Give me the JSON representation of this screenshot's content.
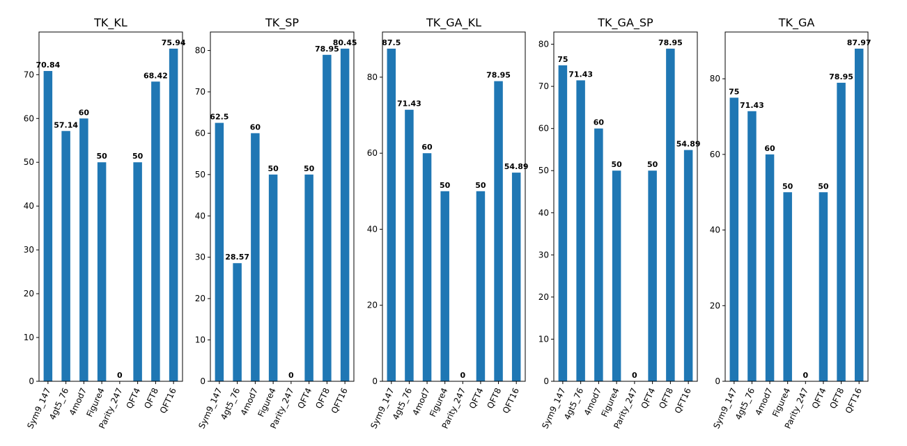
{
  "chart_data": [
    {
      "type": "bar",
      "title": "TK_KL",
      "categories": [
        "Sym9_147",
        "4gt5_76",
        "4mod7",
        "Figure4",
        "Parity_247",
        "QFT4",
        "QFT8",
        "QFT16"
      ],
      "values": [
        70.84,
        57.14,
        60,
        50,
        0,
        50,
        68.42,
        75.94
      ],
      "labels": [
        "70.84",
        "57.14",
        "60",
        "50",
        "0",
        "50",
        "68.42",
        "75.94"
      ],
      "yticks": [
        "0",
        "10",
        "20",
        "30",
        "40",
        "50",
        "60",
        "70"
      ],
      "ylim": [
        0,
        79.74
      ],
      "xlabel": "",
      "ylabel": "",
      "color": "#1f77b4",
      "grid": false
    },
    {
      "type": "bar",
      "title": "TK_SP",
      "categories": [
        "Sym9_147",
        "4gt5_76",
        "4mod7",
        "Figure4",
        "Parity_247",
        "QFT4",
        "QFT8",
        "QFT16"
      ],
      "values": [
        62.5,
        28.57,
        60,
        50,
        0,
        50,
        78.95,
        80.45
      ],
      "labels": [
        "62.5",
        "28.57",
        "60",
        "50",
        "0",
        "50",
        "78.95",
        "80.45"
      ],
      "yticks": [
        "0",
        "10",
        "20",
        "30",
        "40",
        "50",
        "60",
        "70",
        "80"
      ],
      "ylim": [
        0,
        84.47
      ],
      "xlabel": "",
      "ylabel": "",
      "color": "#1f77b4",
      "grid": false
    },
    {
      "type": "bar",
      "title": "TK_GA_KL",
      "categories": [
        "Sym9_147",
        "4gt5_76",
        "4mod7",
        "Figure4",
        "Parity_247",
        "QFT4",
        "QFT8",
        "QFT16"
      ],
      "values": [
        87.5,
        71.43,
        60,
        50,
        0,
        50,
        78.95,
        54.89
      ],
      "labels": [
        "87.5",
        "71.43",
        "60",
        "50",
        "0",
        "50",
        "78.95",
        "54.89"
      ],
      "yticks": [
        "0",
        "20",
        "40",
        "60",
        "80"
      ],
      "ylim": [
        0,
        91.88
      ],
      "xlabel": "",
      "ylabel": "",
      "color": "#1f77b4",
      "grid": false
    },
    {
      "type": "bar",
      "title": "TK_GA_SP",
      "categories": [
        "Sym9_147",
        "4gt5_76",
        "4mod7",
        "Figure4",
        "Parity_247",
        "QFT4",
        "QFT8",
        "QFT16"
      ],
      "values": [
        75,
        71.43,
        60,
        50,
        0,
        50,
        78.95,
        54.89
      ],
      "labels": [
        "75",
        "71.43",
        "60",
        "50",
        "0",
        "50",
        "78.95",
        "54.89"
      ],
      "yticks": [
        "0",
        "10",
        "20",
        "30",
        "40",
        "50",
        "60",
        "70",
        "80"
      ],
      "ylim": [
        0,
        82.9
      ],
      "xlabel": "",
      "ylabel": "",
      "color": "#1f77b4",
      "grid": false
    },
    {
      "type": "bar",
      "title": "TK_GA",
      "categories": [
        "Sym9_147",
        "4gt5_76",
        "4mod7",
        "Figure4",
        "Parity_247",
        "QFT4",
        "QFT8",
        "QFT16"
      ],
      "values": [
        75,
        71.43,
        60,
        50,
        0,
        50,
        78.95,
        87.97
      ],
      "labels": [
        "75",
        "71.43",
        "60",
        "50",
        "0",
        "50",
        "78.95",
        "87.97"
      ],
      "yticks": [
        "0",
        "20",
        "40",
        "60",
        "80"
      ],
      "ylim": [
        0,
        92.37
      ],
      "xlabel": "",
      "ylabel": "",
      "color": "#1f77b4",
      "grid": false
    }
  ]
}
